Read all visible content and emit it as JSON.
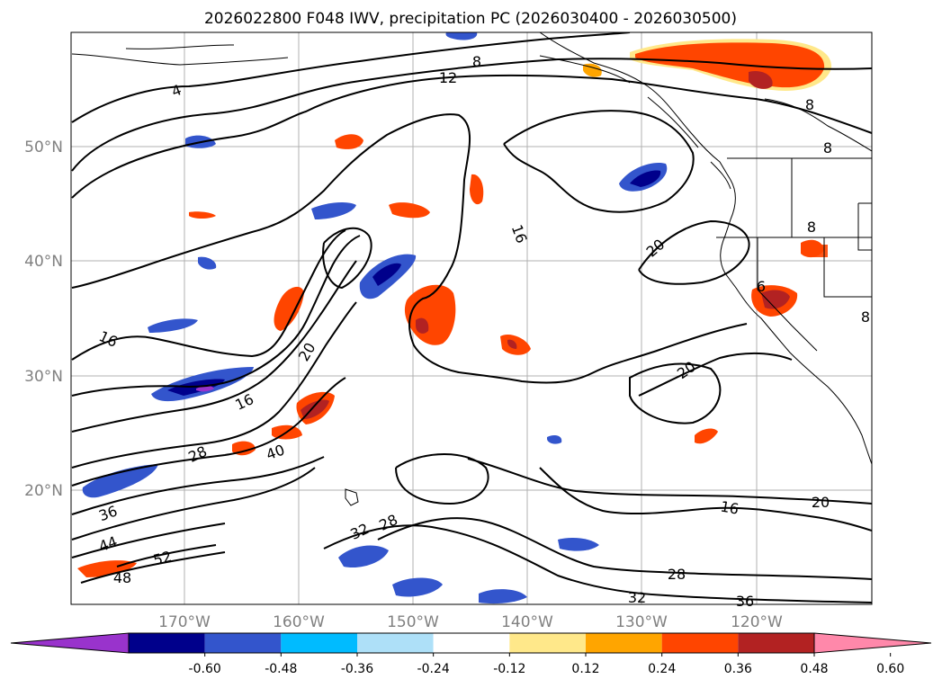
{
  "chart_data": {
    "type": "contour_map",
    "title": "2026022800 F048 IWV, precipitation PC (2026030400 - 2026030500)",
    "lon_ticks": [
      "170°W",
      "160°W",
      "150°W",
      "140°W",
      "130°W",
      "120°W"
    ],
    "lat_ticks": [
      "50°N",
      "40°N",
      "30°N",
      "20°N"
    ],
    "iwv_contour_labels": [
      "4",
      "8",
      "12",
      "16",
      "16",
      "16",
      "16",
      "20",
      "20",
      "20",
      "20",
      "28",
      "28",
      "28",
      "32",
      "32",
      "36",
      "36",
      "40",
      "44",
      "48",
      "52",
      "8",
      "8",
      "8",
      "6",
      "8"
    ],
    "colorbar": {
      "ticks": [
        "-0.60",
        "-0.48",
        "-0.36",
        "-0.24",
        "-0.12",
        "0.12",
        "0.24",
        "0.36",
        "0.48",
        "0.60"
      ],
      "colors": [
        "#9933cc",
        "#00008b",
        "#3355cc",
        "#00bbff",
        "#aee0f8",
        "#ffffff",
        "#ffe88a",
        "#ffa500",
        "#ff4500",
        "#b22222",
        "#ff88aa"
      ]
    }
  }
}
